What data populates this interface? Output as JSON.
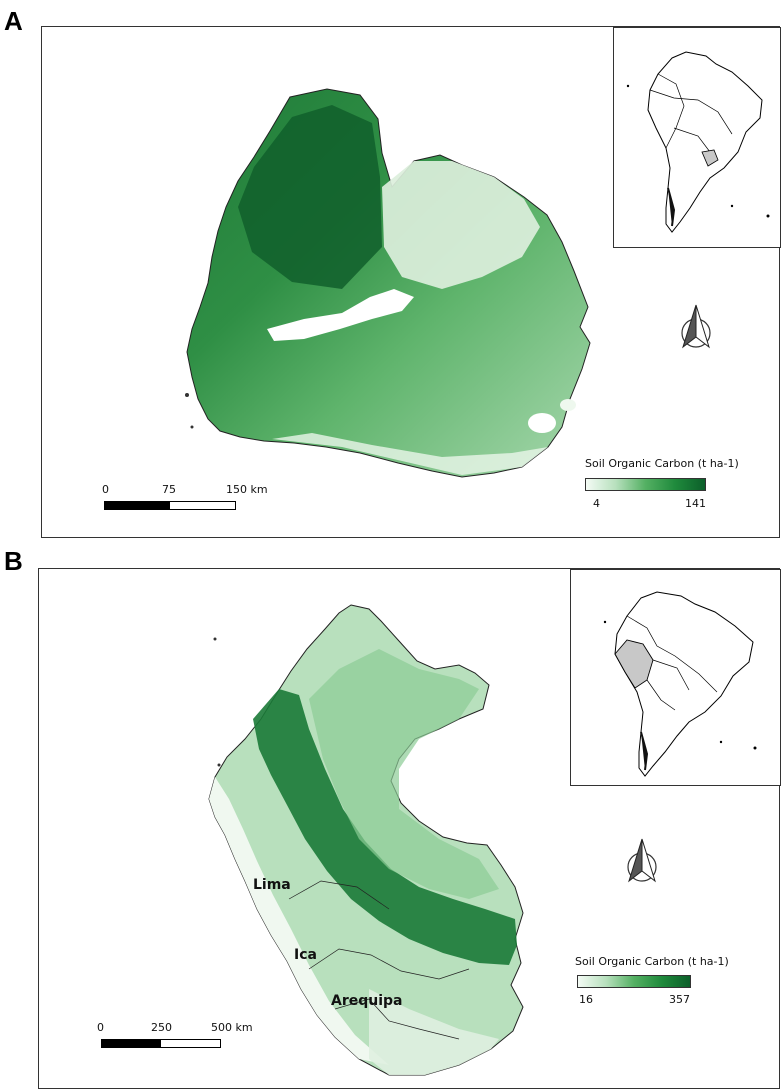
{
  "panels": [
    {
      "letter": "A",
      "legend": {
        "title": "Soil Organic Carbon (t ha-1)",
        "min": "4",
        "max": "141"
      },
      "scale": {
        "labels": [
          "0",
          "75",
          "150 km"
        ]
      }
    },
    {
      "letter": "B",
      "legend": {
        "title": "Soil Organic Carbon (t ha-1)",
        "min": "16",
        "max": "357"
      },
      "scale": {
        "labels": [
          "0",
          "250",
          "500 km"
        ]
      },
      "cities": [
        "Lima",
        "Ica",
        "Arequipa"
      ]
    }
  ],
  "colors": {
    "low": "#f4fbf5",
    "mid": "#54b063",
    "high": "#0c5f2a",
    "highlight": "#c8c8c8"
  }
}
